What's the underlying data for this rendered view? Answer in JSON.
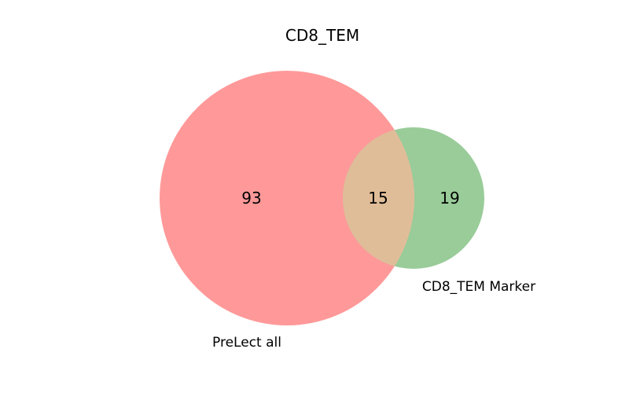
{
  "title": "CD8_TEM",
  "colors": {
    "set_a": "#ff9999",
    "set_b": "#99cc99",
    "overlap": "#e0bd99"
  },
  "chart_data": {
    "type": "venn",
    "title": "CD8_TEM",
    "sets": [
      {
        "name": "PreLect all",
        "only_count": "93"
      },
      {
        "name": "CD8_TEM Marker",
        "only_count": "19"
      }
    ],
    "intersection_count": "15"
  }
}
